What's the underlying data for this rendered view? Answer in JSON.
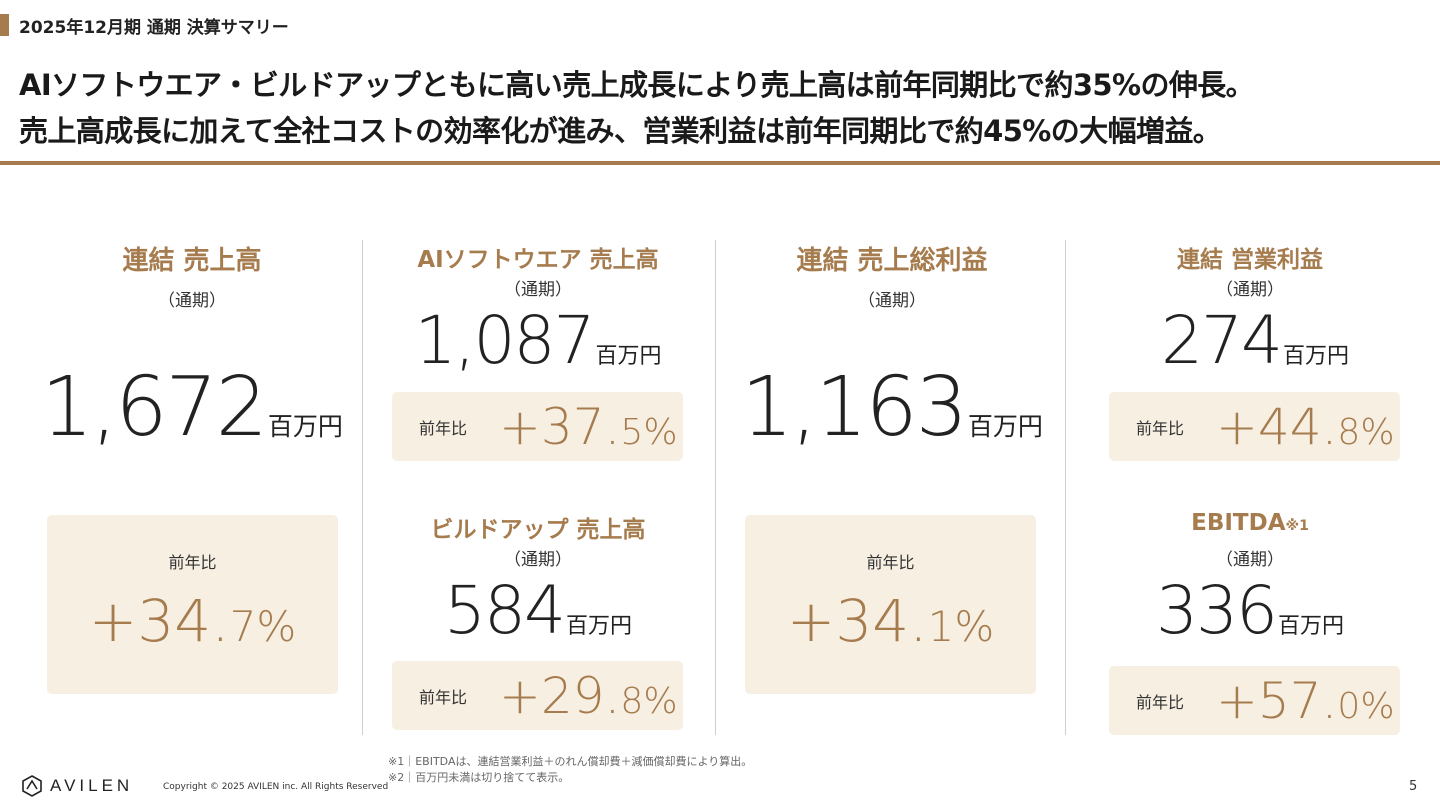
{
  "header": {
    "section_label": "2025年12月期 通期 決算サマリー",
    "headline_1": "AIソフトウエア・ビルドアップともに高い売上成長により売上高は前年同期比で約35%の伸長。",
    "headline_2": "売上高成長に加えて全社コストの効率化が進み、営業利益は前年同期比で約45%の大幅増益。"
  },
  "metrics": {
    "consolidated_sales": {
      "title": "連結 売上高",
      "period": "（通期）",
      "value": "1,672",
      "unit": "百万円",
      "yoy_label": "前年比",
      "yoy_main": "+34.",
      "yoy_dec": "7%"
    },
    "ai_software_sales": {
      "title": "AIソフトウエア 売上高",
      "period": "（通期）",
      "value": "1,087",
      "unit": "百万円",
      "yoy_label": "前年比",
      "yoy_main": "+37.",
      "yoy_dec": "5%"
    },
    "buildup_sales": {
      "title": "ビルドアップ 売上高",
      "period": "（通期）",
      "value": "584",
      "unit": "百万円",
      "yoy_label": "前年比",
      "yoy_main": "+29.",
      "yoy_dec": "8%"
    },
    "consolidated_gross_profit": {
      "title": "連結 売上総利益",
      "period": "（通期）",
      "value": "1,163",
      "unit": "百万円",
      "yoy_label": "前年比",
      "yoy_main": "+34.",
      "yoy_dec": "1%"
    },
    "consolidated_operating_profit": {
      "title": "連結 営業利益",
      "period": "（通期）",
      "value": "274",
      "unit": "百万円",
      "yoy_label": "前年比",
      "yoy_main": "+44.",
      "yoy_dec": "8%"
    },
    "ebitda": {
      "title": "EBITDA",
      "note_mark": "※1",
      "period": "（通期）",
      "value": "336",
      "unit": "百万円",
      "yoy_label": "前年比",
      "yoy_main": "+57.",
      "yoy_dec": "0%"
    }
  },
  "footnotes": {
    "note_1": "※1｜EBITDAは、連結営業利益＋のれん償却費＋減価償却費により算出。",
    "note_2": "※2｜百万円未満は切り捨てて表示。"
  },
  "footer": {
    "logo_text": "AVILEN",
    "copyright": "Copyright © 2025 AVILEN inc. All Rights Reserved",
    "page_number": "5"
  },
  "colors": {
    "accent": "#a67c4e",
    "box_bg": "#f7efe2"
  }
}
